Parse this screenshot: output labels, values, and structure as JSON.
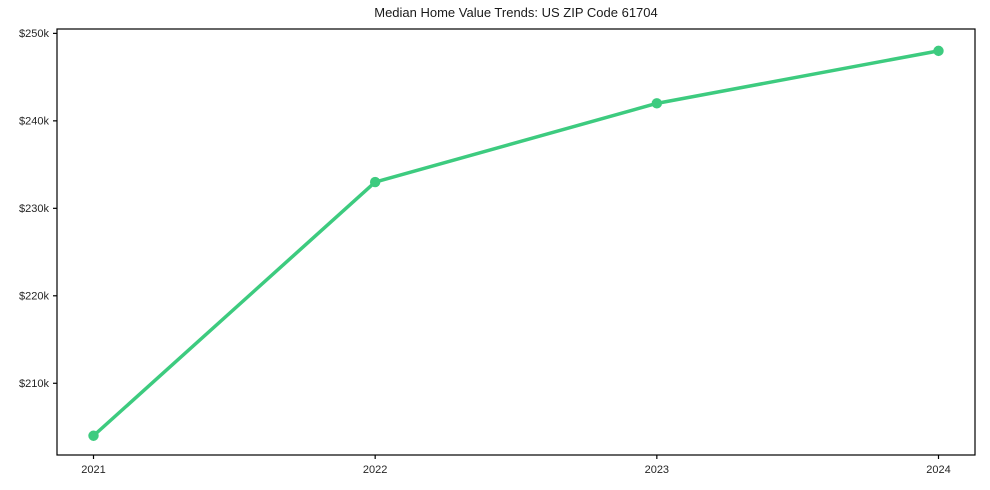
{
  "chart_data": {
    "type": "line",
    "title": "Median Home Value Trends: US ZIP Code 61704",
    "x": [
      2021,
      2022,
      2023,
      2024
    ],
    "values": [
      204000,
      233000,
      242000,
      248000
    ],
    "xtick_labels": [
      "2021",
      "2022",
      "2023",
      "2024"
    ],
    "yticks": [
      210000,
      220000,
      230000,
      240000,
      250000
    ],
    "ytick_labels": [
      "$210k",
      "$220k",
      "$230k",
      "$240k",
      "$250k"
    ],
    "ylim": [
      201800,
      250500
    ],
    "xlabel": "",
    "ylabel": "",
    "grid": false,
    "legend": false,
    "marker": "circle",
    "colors": {
      "line": "#3dcb7f",
      "marker": "#3dcb7f",
      "axis": "#000000",
      "text": "#262626",
      "background": "#ffffff"
    }
  }
}
